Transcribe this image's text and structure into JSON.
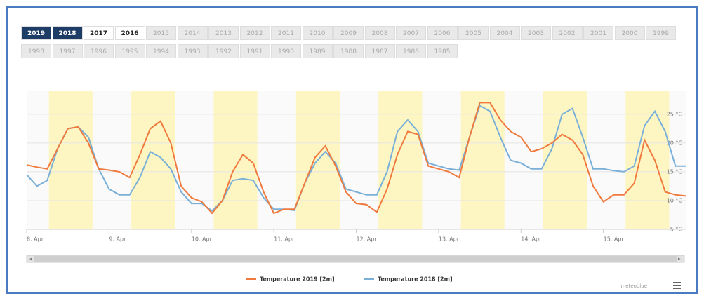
{
  "year_buttons": [
    [
      {
        "label": "2019",
        "state": "active"
      },
      {
        "label": "2018",
        "state": "active"
      },
      {
        "label": "2017",
        "state": "plain"
      },
      {
        "label": "2016",
        "state": "plain"
      },
      {
        "label": "2015",
        "state": "off"
      },
      {
        "label": "2014",
        "state": "off"
      },
      {
        "label": "2013",
        "state": "off"
      },
      {
        "label": "2012",
        "state": "off"
      },
      {
        "label": "2011",
        "state": "off"
      },
      {
        "label": "2010",
        "state": "off"
      },
      {
        "label": "2009",
        "state": "off"
      },
      {
        "label": "2008",
        "state": "off"
      },
      {
        "label": "2007",
        "state": "off"
      },
      {
        "label": "2006",
        "state": "off"
      },
      {
        "label": "2005",
        "state": "off"
      },
      {
        "label": "2004",
        "state": "off"
      },
      {
        "label": "2003",
        "state": "off"
      },
      {
        "label": "2002",
        "state": "off"
      },
      {
        "label": "2001",
        "state": "off"
      },
      {
        "label": "2000",
        "state": "off"
      },
      {
        "label": "1999",
        "state": "off"
      }
    ],
    [
      {
        "label": "1998",
        "state": "off"
      },
      {
        "label": "1997",
        "state": "off"
      },
      {
        "label": "1996",
        "state": "off"
      },
      {
        "label": "1995",
        "state": "off"
      },
      {
        "label": "1994",
        "state": "off"
      },
      {
        "label": "1993",
        "state": "off"
      },
      {
        "label": "1992",
        "state": "off"
      },
      {
        "label": "1991",
        "state": "off"
      },
      {
        "label": "1990",
        "state": "off"
      },
      {
        "label": "1989",
        "state": "off"
      },
      {
        "label": "1988",
        "state": "off"
      },
      {
        "label": "1987",
        "state": "off"
      },
      {
        "label": "1986",
        "state": "off"
      },
      {
        "label": "1985",
        "state": "off"
      }
    ]
  ],
  "credit": "meteoblue",
  "chart_data": {
    "type": "line",
    "xlim": [
      0,
      8
    ],
    "xticks": [
      {
        "value": 0,
        "label": "8. Apr"
      },
      {
        "value": 1,
        "label": "9. Apr"
      },
      {
        "value": 2,
        "label": "10. Apr"
      },
      {
        "value": 3,
        "label": "11. Apr"
      },
      {
        "value": 4,
        "label": "12. Apr"
      },
      {
        "value": 5,
        "label": "13. Apr"
      },
      {
        "value": 6,
        "label": "14. Apr"
      },
      {
        "value": 7,
        "label": "15. Apr"
      }
    ],
    "ylim": [
      5,
      29
    ],
    "yticks": [
      {
        "value": 5,
        "label": "5 °C"
      },
      {
        "value": 10,
        "label": "10 °C"
      },
      {
        "value": 15,
        "label": "15 °C"
      },
      {
        "value": 20,
        "label": "20 °C"
      },
      {
        "value": 25,
        "label": "25 °C"
      }
    ],
    "grid": true,
    "bands_color": "#fdf6c3",
    "bands": [
      [
        0.27,
        0.8
      ],
      [
        1.27,
        1.8
      ],
      [
        2.27,
        2.8
      ],
      [
        3.27,
        3.8
      ],
      [
        4.27,
        4.8
      ],
      [
        5.27,
        5.8
      ],
      [
        6.27,
        6.8
      ],
      [
        7.27,
        7.8
      ]
    ],
    "x": [
      0,
      0.125,
      0.25,
      0.375,
      0.5,
      0.625,
      0.75,
      0.875,
      1,
      1.125,
      1.25,
      1.375,
      1.5,
      1.625,
      1.75,
      1.875,
      2,
      2.125,
      2.25,
      2.375,
      2.5,
      2.625,
      2.75,
      2.875,
      3,
      3.125,
      3.25,
      3.375,
      3.5,
      3.625,
      3.75,
      3.875,
      4,
      4.125,
      4.25,
      4.375,
      4.5,
      4.625,
      4.75,
      4.875,
      5,
      5.125,
      5.25,
      5.375,
      5.5,
      5.625,
      5.75,
      5.875,
      6,
      6.125,
      6.25,
      6.375,
      6.5,
      6.625,
      6.75,
      6.875,
      7,
      7.125,
      7.25,
      7.375,
      7.5,
      7.625,
      7.75,
      7.875,
      8
    ],
    "series": [
      {
        "name": "Temperature 2019 [2m]",
        "color": "#f07a3e",
        "values": [
          16.2,
          15.8,
          15.5,
          19,
          22.5,
          22.8,
          20,
          15.5,
          15.3,
          15,
          14,
          18,
          22.5,
          23.8,
          20,
          12.5,
          10.5,
          9.8,
          7.8,
          10,
          15,
          18,
          16.5,
          11.5,
          7.8,
          8.5,
          8.5,
          13,
          17.5,
          19.5,
          16,
          11.5,
          9.5,
          9.3,
          8,
          12,
          18,
          22,
          21.5,
          16,
          15.5,
          15,
          14,
          21,
          27,
          27,
          24,
          22,
          21,
          18.5,
          19,
          20,
          21.5,
          20.5,
          18,
          12.5,
          9.8,
          11,
          11,
          13,
          20.5,
          17,
          11.5,
          11,
          10.8
        ]
      },
      {
        "name": "Temperature 2018 [2m]",
        "color": "#7ab0d8",
        "values": [
          14.5,
          12.5,
          13.5,
          19,
          22.5,
          22.8,
          21,
          15.5,
          12,
          11,
          11,
          14,
          18.5,
          17.5,
          15.5,
          11.5,
          9.5,
          9.5,
          8.2,
          10,
          13.5,
          13.8,
          13.5,
          10.5,
          8.5,
          8.5,
          8.3,
          13,
          16.5,
          18.5,
          16.5,
          12,
          11.5,
          11,
          11,
          15,
          22,
          24,
          22,
          16.5,
          16,
          15.5,
          15.3,
          21,
          26.5,
          25.5,
          21,
          17,
          16.5,
          15.5,
          15.5,
          19,
          25,
          26,
          21,
          15.5,
          15.5,
          15.2,
          15,
          16,
          23,
          25.5,
          22,
          16,
          16
        ]
      }
    ]
  }
}
